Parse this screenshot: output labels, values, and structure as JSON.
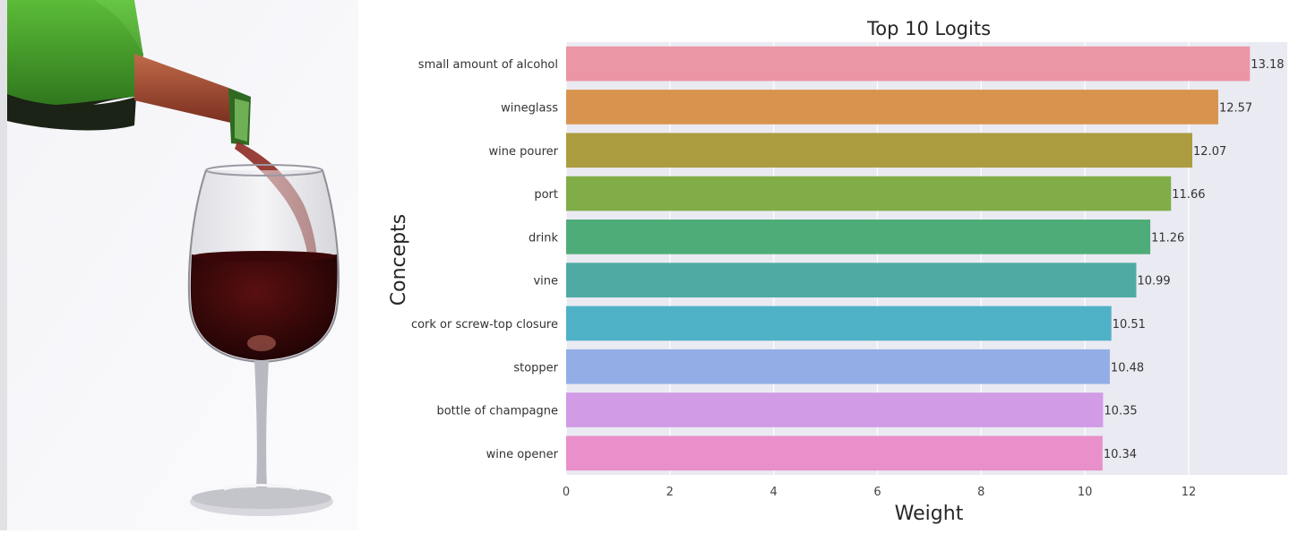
{
  "photo": {
    "subject": "wine bottle pouring red wine into a wineglass"
  },
  "chart_data": {
    "type": "bar",
    "orientation": "horizontal",
    "title": "Top 10 Logits",
    "xlabel": "Weight",
    "ylabel": "Concepts",
    "xlim": [
      0,
      13.9
    ],
    "xticks": [
      0,
      2,
      4,
      6,
      8,
      10,
      12
    ],
    "grid": true,
    "categories": [
      "small amount of alcohol",
      "wineglass",
      "wine pourer",
      "port",
      "drink",
      "vine",
      "cork or screw-top closure",
      "stopper",
      "bottle of champagne",
      "wine opener"
    ],
    "values": [
      13.18,
      12.57,
      12.07,
      11.66,
      11.26,
      10.99,
      10.51,
      10.48,
      10.35,
      10.34
    ],
    "value_labels": [
      "13.18",
      "12.57",
      "12.07",
      "11.66",
      "11.26",
      "10.99",
      "10.51",
      "10.48",
      "10.35",
      "10.34"
    ],
    "colors": [
      "#eb96a5",
      "#d8944e",
      "#ac9c40",
      "#80ad48",
      "#4eac78",
      "#4eaaa3",
      "#4fb1c6",
      "#93aee6",
      "#d19be6",
      "#e98fca"
    ],
    "background": "#eaeaf2"
  }
}
